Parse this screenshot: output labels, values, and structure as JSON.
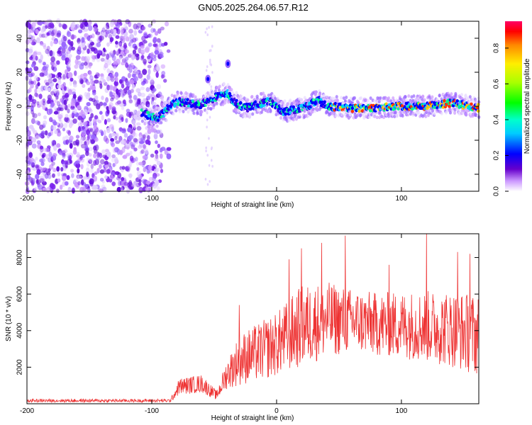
{
  "figure": {
    "title": "GN05.2025.264.06.57.R12"
  },
  "chart_data": [
    {
      "type": "heatmap",
      "name": "spectrogram",
      "xlabel": "Height of straight line (km)",
      "ylabel": "Frequency (Hz)",
      "xlim": [
        -200,
        162
      ],
      "ylim": [
        -50,
        50
      ],
      "xticks": [
        -200,
        -100,
        0,
        100
      ],
      "yticks": [
        -40,
        -20,
        0,
        20,
        40
      ],
      "colorbar": {
        "label": "Normalized spectral amplitude",
        "range": [
          0,
          0.95
        ],
        "ticks": [
          0.0,
          0.2,
          0.4,
          0.6,
          0.8
        ]
      },
      "ridge": [
        {
          "x": -108,
          "f": -4
        },
        {
          "x": -95,
          "f": -7
        },
        {
          "x": -88,
          "f": -2
        },
        {
          "x": -80,
          "f": 3
        },
        {
          "x": -70,
          "f": 2
        },
        {
          "x": -60,
          "f": 1
        },
        {
          "x": -50,
          "f": 5
        },
        {
          "x": -40,
          "f": 8
        },
        {
          "x": -35,
          "f": 3
        },
        {
          "x": -25,
          "f": -1
        },
        {
          "x": -15,
          "f": 1
        },
        {
          "x": -5,
          "f": 3
        },
        {
          "x": 5,
          "f": -3
        },
        {
          "x": 15,
          "f": -2
        },
        {
          "x": 25,
          "f": 0
        },
        {
          "x": 33,
          "f": 4
        },
        {
          "x": 40,
          "f": 0
        },
        {
          "x": 60,
          "f": -1
        },
        {
          "x": 80,
          "f": -1
        },
        {
          "x": 100,
          "f": 0
        },
        {
          "x": 120,
          "f": 0
        },
        {
          "x": 140,
          "f": 2
        },
        {
          "x": 162,
          "f": -1
        }
      ],
      "isolated_blobs": [
        {
          "x": -55,
          "f": 16
        },
        {
          "x": -39,
          "f": 25
        }
      ],
      "noise_region": [
        -200,
        -85
      ]
    },
    {
      "type": "line",
      "name": "snr",
      "xlabel": "Height of straight line (km)",
      "ylabel": "SNR (10 * v/v)",
      "xlim": [
        -200,
        162
      ],
      "ylim": [
        0,
        9300
      ],
      "xticks": [
        -200,
        -100,
        0,
        100
      ],
      "yticks": [
        2000,
        4000,
        6000,
        8000
      ],
      "color": "#ee3333",
      "envelope": [
        {
          "x": -200,
          "base": 80,
          "amp": 180
        },
        {
          "x": -85,
          "base": 80,
          "amp": 180
        },
        {
          "x": -78,
          "base": 500,
          "amp": 900
        },
        {
          "x": -60,
          "base": 600,
          "amp": 1000
        },
        {
          "x": -48,
          "base": 200,
          "amp": 500
        },
        {
          "x": -40,
          "base": 800,
          "amp": 1600
        },
        {
          "x": -30,
          "base": 1000,
          "amp": 2800
        },
        {
          "x": -15,
          "base": 1200,
          "amp": 3200
        },
        {
          "x": 0,
          "base": 1500,
          "amp": 3500
        },
        {
          "x": 20,
          "base": 2000,
          "amp": 4500
        },
        {
          "x": 40,
          "base": 2500,
          "amp": 4200
        },
        {
          "x": 60,
          "base": 2800,
          "amp": 3500
        },
        {
          "x": 80,
          "base": 2600,
          "amp": 3500
        },
        {
          "x": 110,
          "base": 2400,
          "amp": 3800
        },
        {
          "x": 140,
          "base": 2000,
          "amp": 4200
        },
        {
          "x": 162,
          "base": 1500,
          "amp": 4500
        }
      ],
      "peaks": [
        {
          "x": 20,
          "y": 8500
        },
        {
          "x": 36,
          "y": 8800
        },
        {
          "x": 55,
          "y": 9200
        },
        {
          "x": 120,
          "y": 9300
        },
        {
          "x": 145,
          "y": 8300
        },
        {
          "x": 155,
          "y": 8200
        },
        {
          "x": -30,
          "y": 5400
        },
        {
          "x": 10,
          "y": 7900
        },
        {
          "x": 90,
          "y": 7600
        }
      ]
    }
  ]
}
